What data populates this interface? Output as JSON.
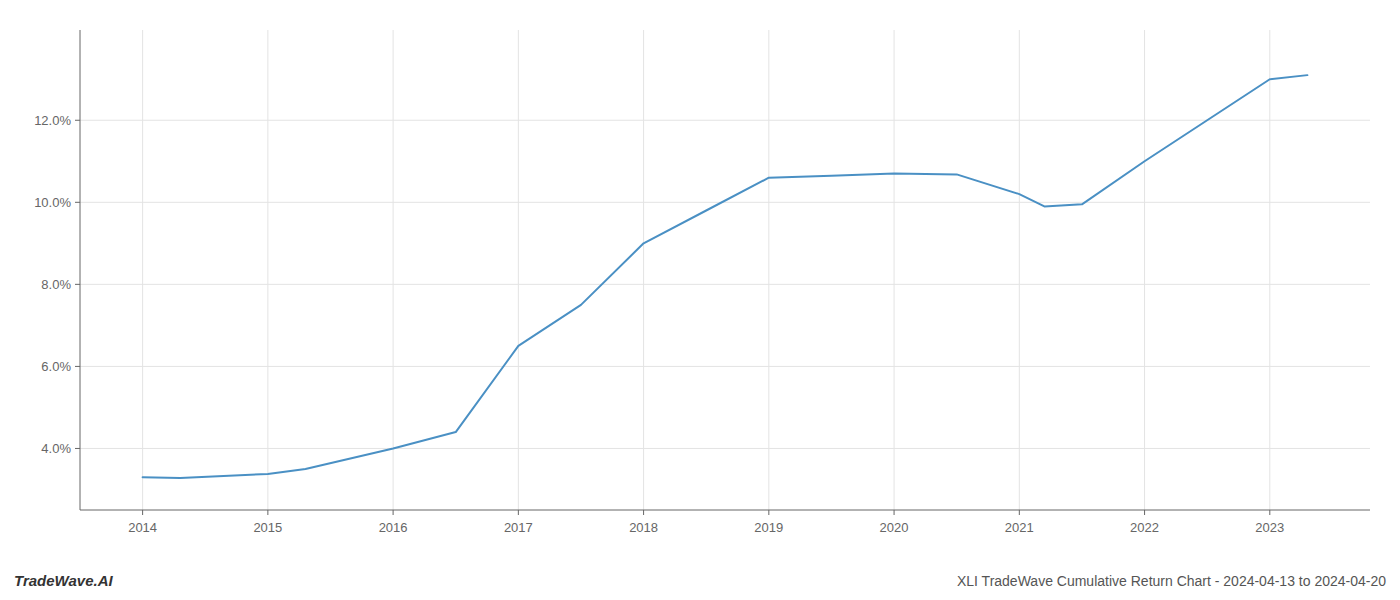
{
  "chart_data": {
    "type": "line",
    "title": "XLI TradeWave Cumulative Return Chart - 2024-04-13 to 2024-04-20",
    "annotations": [
      "TradeWave.AI"
    ],
    "x": [
      2014,
      2014.3,
      2015,
      2015.3,
      2016,
      2016.5,
      2017,
      2017.5,
      2018,
      2018.5,
      2019,
      2019.5,
      2020,
      2020.5,
      2021,
      2021.2,
      2021.5,
      2022,
      2022.5,
      2023,
      2023.3
    ],
    "values": [
      3.3,
      3.28,
      3.38,
      3.5,
      4.0,
      4.4,
      6.5,
      7.5,
      9.0,
      9.8,
      10.6,
      10.65,
      10.7,
      10.68,
      10.2,
      9.9,
      9.95,
      11.0,
      12.0,
      13.0,
      13.1
    ],
    "color": "#4a90c4",
    "xlim": [
      2013.5,
      2023.8
    ],
    "ylim": [
      2.5,
      14.2
    ],
    "xticks": [
      2014,
      2015,
      2016,
      2017,
      2018,
      2019,
      2020,
      2021,
      2022,
      2023
    ],
    "yticks": [
      {
        "value": 4.0,
        "label": "4.0%"
      },
      {
        "value": 6.0,
        "label": "6.0%"
      },
      {
        "value": 8.0,
        "label": "8.0%"
      },
      {
        "value": 10.0,
        "label": "10.0%"
      },
      {
        "value": 12.0,
        "label": "12.0%"
      }
    ],
    "grid": true
  }
}
